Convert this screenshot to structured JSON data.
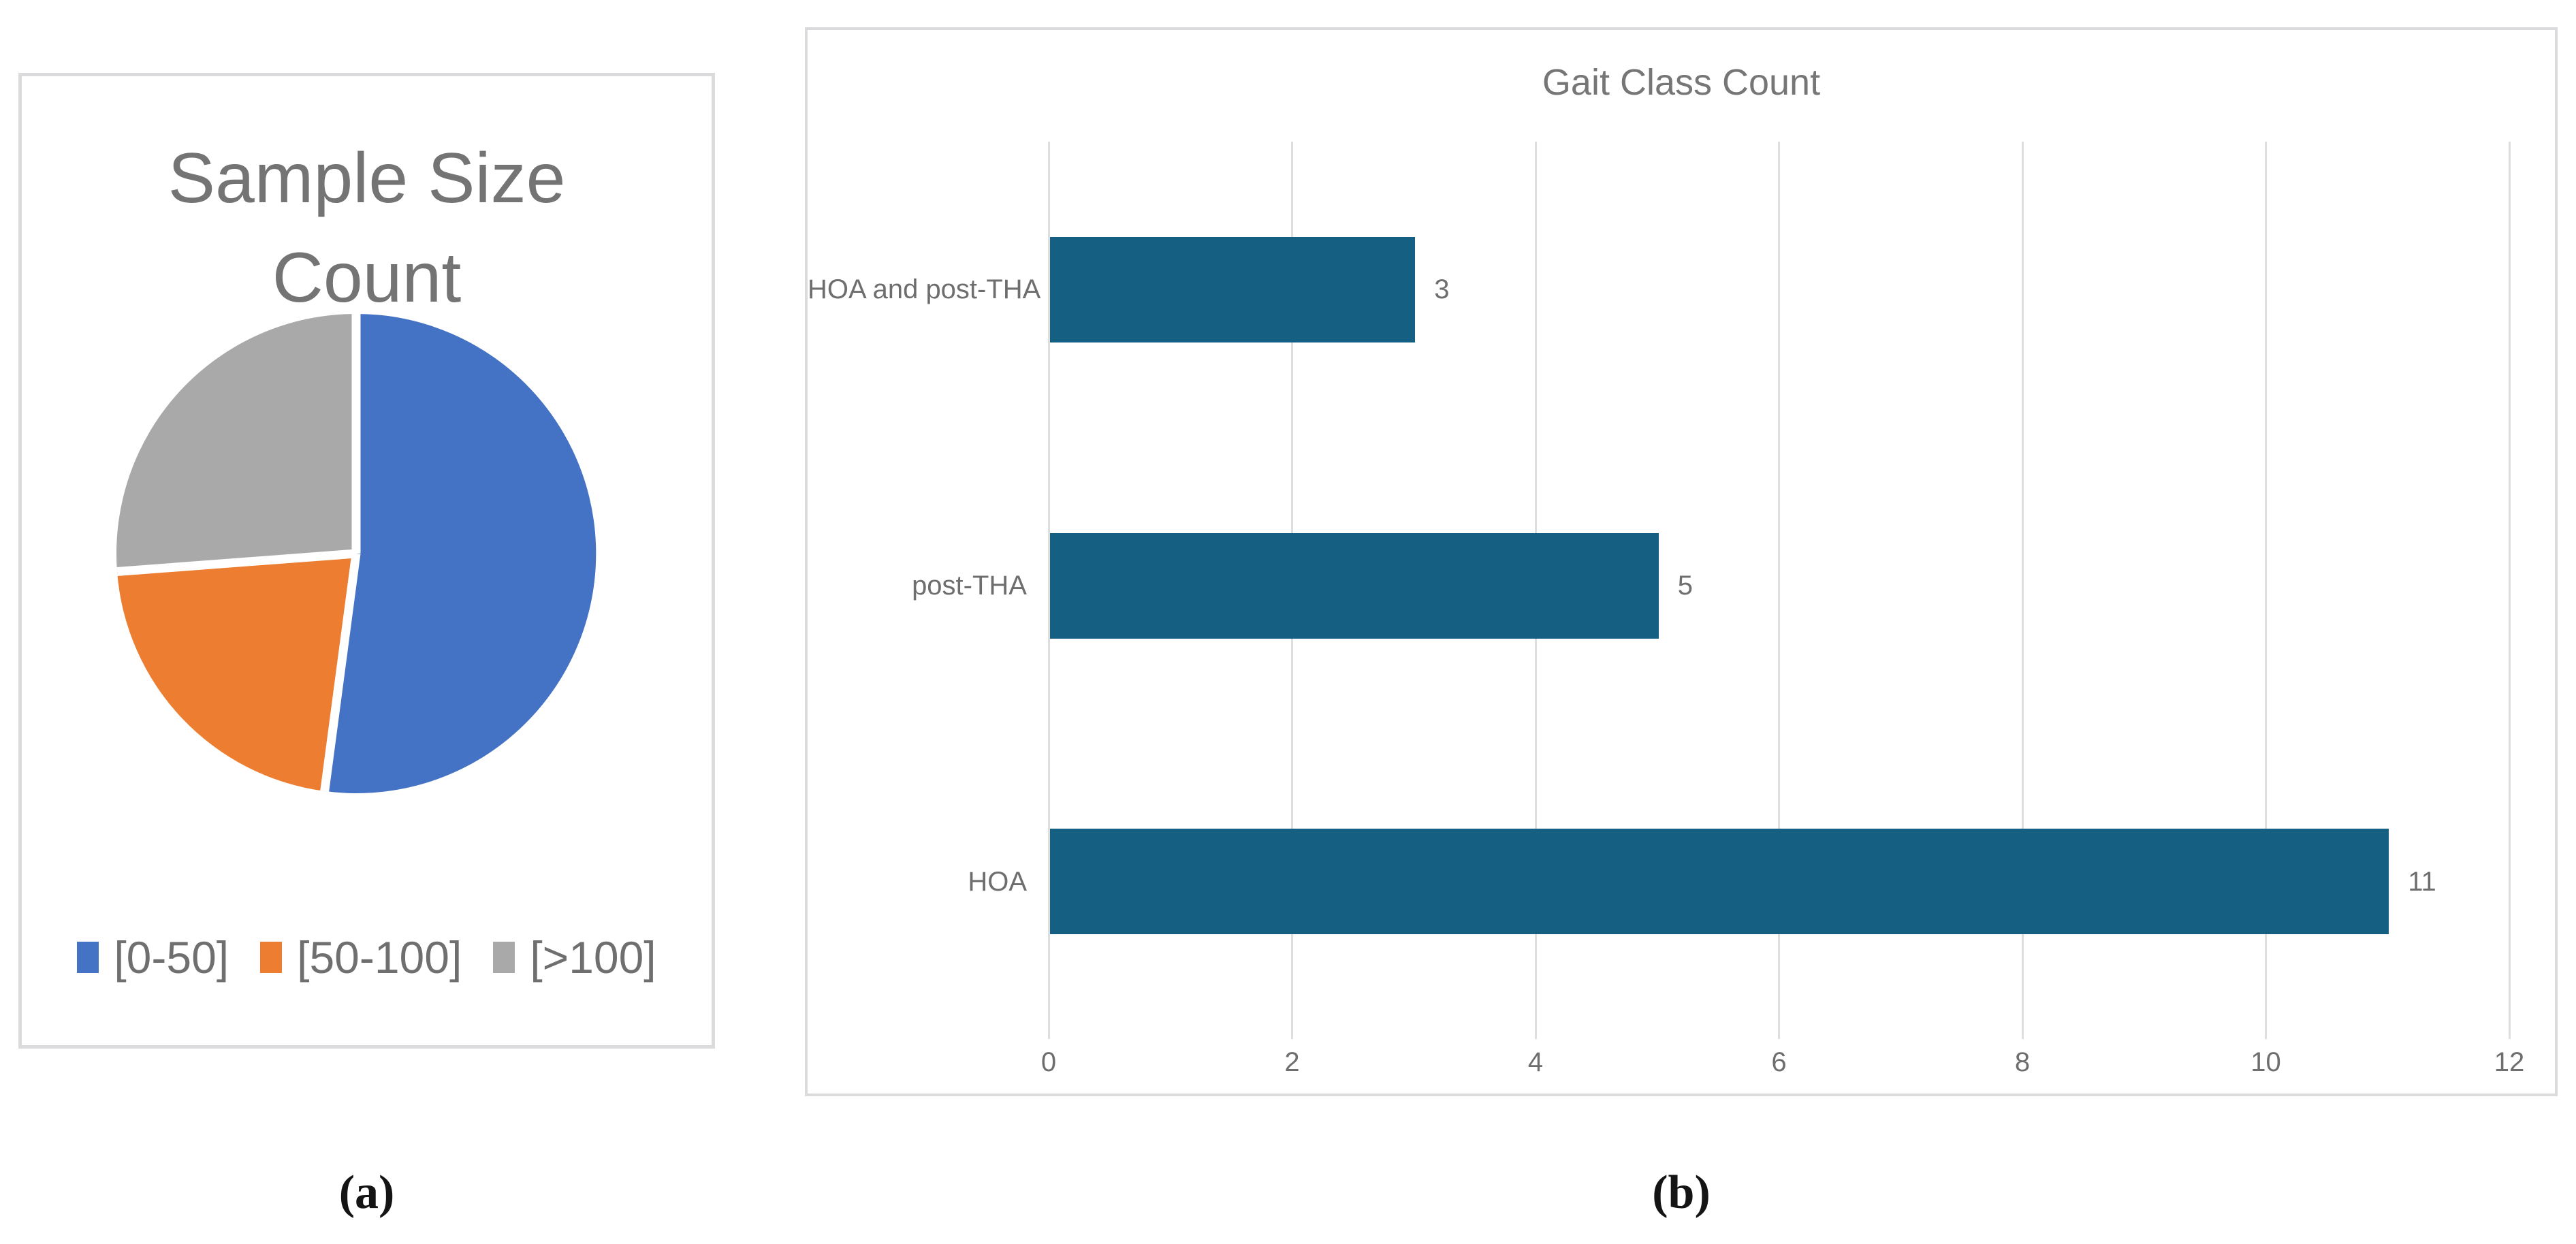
{
  "figure": {
    "caption_a": "(a)",
    "caption_b": "(b)",
    "background_color": "#FFFFFF",
    "panel_border_color": "#DBDBDD"
  },
  "pie_panel": {
    "title_line1": "Sample Size",
    "title_line2": "Count",
    "title_color": "#747474",
    "legend_text_color": "#6F6F6F",
    "legend": [
      {
        "label": "[0-50]",
        "color": "#4472C4"
      },
      {
        "label": "[50-100]",
        "color": "#ED7D31"
      },
      {
        "label": "[>100]",
        "color": "#A9A9A9"
      }
    ]
  },
  "bar_panel": {
    "title": "Gait Class Count",
    "title_color": "#767676",
    "label_color": "#6E6E6E",
    "bar_color": "#156082",
    "gridline_color": "#DEDEDE"
  },
  "chart_data": [
    {
      "type": "pie",
      "title": "Sample Size Count",
      "categories": [
        "[0-50]",
        "[50-100]",
        "[>100]"
      ],
      "values_percent": [
        52.1,
        21.7,
        26.2
      ],
      "colors": [
        "#4472C4",
        "#ED7D31",
        "#A9A9A9"
      ],
      "start_angle_deg": 0,
      "clockwise": true,
      "slice_separator_color": "#FFFFFF",
      "legend_position": "bottom",
      "legend_entries": [
        "[0-50]",
        "[50-100]",
        "[>100]"
      ]
    },
    {
      "type": "bar",
      "orientation": "horizontal",
      "title": "Gait Class Count",
      "categories": [
        "HOA and post-THA",
        "post-THA",
        "HOA"
      ],
      "values": [
        3,
        5,
        11
      ],
      "data_labels": [
        "3",
        "5",
        "11"
      ],
      "bar_color": "#156082",
      "xlabel": "",
      "ylabel": "",
      "xlim": [
        0,
        12
      ],
      "xticks": [
        0,
        2,
        4,
        6,
        8,
        10,
        12
      ],
      "grid": true,
      "legend_position": "none"
    }
  ]
}
